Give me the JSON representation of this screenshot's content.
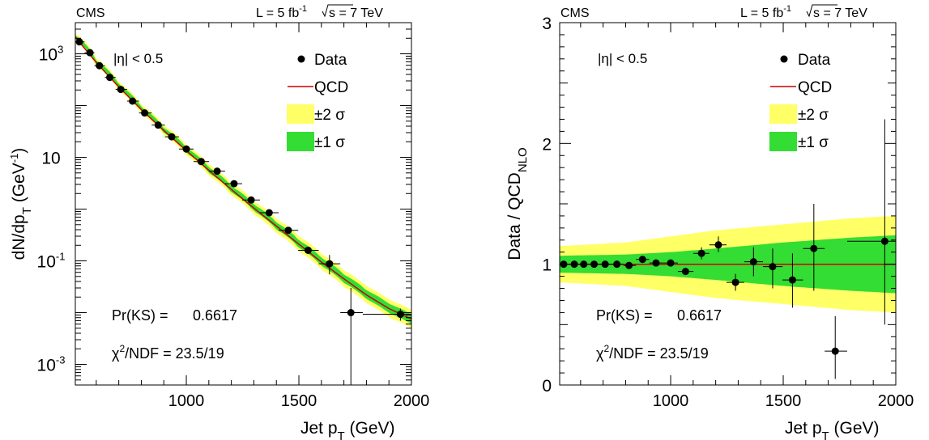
{
  "colors": {
    "band2": "#ffff66",
    "band1": "#33dd33",
    "qcd": "#cc0000",
    "data": "#000000"
  },
  "chart_data": [
    {
      "type": "scatter",
      "id": "spectrum",
      "experiment": "CMS",
      "lumi_text": "L = 5 fb",
      "lumi_sup": "-1",
      "energy_text": "s = 7 TeV",
      "eta_text": "|η| < 0.5",
      "xlabel_main": "Jet p",
      "xlabel_sub": "T",
      "xlabel_unit": " (GeV)",
      "ylabel_main": "dN/dp",
      "ylabel_sub": "T",
      "ylabel_unit": " (GeV",
      "ylabel_sup": "-1",
      "ylabel_end": ")",
      "xlim": [
        507,
        2000
      ],
      "ylim": [
        0.0004,
        4000
      ],
      "log_y": true,
      "x_ticks": [
        {
          "v": 1000,
          "label": "1000"
        },
        {
          "v": 1500,
          "label": "1500"
        },
        {
          "v": 2000,
          "label": "2000"
        }
      ],
      "y_ticks": [
        {
          "v": 0.001,
          "base": "10",
          "exp": "-3"
        },
        {
          "v": 0.1,
          "base": "10",
          "exp": "-1"
        },
        {
          "v": 10,
          "base": "10",
          "exp": ""
        },
        {
          "v": 1000,
          "base": "10",
          "exp": "3"
        }
      ],
      "legend": [
        {
          "kind": "marker",
          "label": "Data"
        },
        {
          "kind": "line",
          "label": "QCD"
        },
        {
          "kind": "band2",
          "label": "±2 σ"
        },
        {
          "kind": "band1",
          "label": "±1 σ"
        }
      ],
      "ks_label": "Pr(KS) =",
      "ks_value": "0.6617",
      "chi2_prefix": "χ",
      "chi2_sup": "2",
      "chi2_rest": "/NDF = 23.5/19",
      "points": [
        {
          "x": 525,
          "xlo": 507,
          "xhi": 548,
          "y": 1700
        },
        {
          "x": 572,
          "xlo": 548,
          "xhi": 592,
          "y": 1050
        },
        {
          "x": 614,
          "xlo": 592,
          "xhi": 638,
          "y": 590
        },
        {
          "x": 660,
          "xlo": 638,
          "xhi": 686,
          "y": 350
        },
        {
          "x": 709,
          "xlo": 686,
          "xhi": 737,
          "y": 205
        },
        {
          "x": 761,
          "xlo": 737,
          "xhi": 790,
          "y": 122
        },
        {
          "x": 815,
          "xlo": 790,
          "xhi": 846,
          "y": 72
        },
        {
          "x": 875,
          "xlo": 846,
          "xhi": 905,
          "y": 42
        },
        {
          "x": 935,
          "xlo": 905,
          "xhi": 967,
          "y": 25
        },
        {
          "x": 1000,
          "xlo": 967,
          "xhi": 1032,
          "y": 14.5
        },
        {
          "x": 1066,
          "xlo": 1032,
          "xhi": 1101,
          "y": 8.3
        },
        {
          "x": 1137,
          "xlo": 1101,
          "xhi": 1172,
          "y": 5.4
        },
        {
          "x": 1212,
          "xlo": 1172,
          "xhi": 1248,
          "y": 3.1
        },
        {
          "x": 1288,
          "xlo": 1248,
          "xhi": 1327,
          "y": 1.5
        },
        {
          "x": 1368,
          "xlo": 1327,
          "xhi": 1410,
          "y": 0.85
        },
        {
          "x": 1453,
          "xlo": 1410,
          "xhi": 1497,
          "y": 0.39
        },
        {
          "x": 1541,
          "xlo": 1497,
          "xhi": 1588,
          "y": 0.16
        },
        {
          "x": 1636,
          "xlo": 1588,
          "xhi": 1684,
          "y": 0.088,
          "ylo": 0.055,
          "yhi": 0.13
        },
        {
          "x": 1731,
          "xlo": 1684,
          "xhi": 1784,
          "y": 0.01,
          "ylo": 0.0004,
          "yhi": 0.03
        },
        {
          "x": 1951,
          "xlo": 1784,
          "xhi": 2000,
          "y": 0.0093,
          "ylo": 0.007,
          "yhi": 0.012
        }
      ],
      "qcd_curve": [
        [
          507,
          2100
        ],
        [
          600,
          680
        ],
        [
          700,
          230
        ],
        [
          800,
          84
        ],
        [
          900,
          33
        ],
        [
          1000,
          13.5
        ],
        [
          1100,
          5.6
        ],
        [
          1200,
          2.4
        ],
        [
          1300,
          1.05
        ],
        [
          1400,
          0.47
        ],
        [
          1500,
          0.21
        ],
        [
          1600,
          0.095
        ],
        [
          1700,
          0.045
        ],
        [
          1800,
          0.022
        ],
        [
          1900,
          0.012
        ],
        [
          2000,
          0.0075
        ]
      ],
      "band1_rel": [
        [
          507,
          0.09
        ],
        [
          1000,
          0.12
        ],
        [
          1500,
          0.18
        ],
        [
          2000,
          0.24
        ]
      ],
      "band2_rel": [
        [
          507,
          0.18
        ],
        [
          1000,
          0.25
        ],
        [
          1500,
          0.4
        ],
        [
          2000,
          0.5
        ]
      ]
    },
    {
      "type": "scatter",
      "id": "ratio",
      "experiment": "CMS",
      "lumi_text": "L = 5 fb",
      "lumi_sup": "-1",
      "energy_text": "s = 7 TeV",
      "eta_text": "|η| < 0.5",
      "xlabel_main": "Jet p",
      "xlabel_sub": "T",
      "xlabel_unit": " (GeV)",
      "ylabel_main": "Data / QCD",
      "ylabel_sub": "NLO",
      "xlim": [
        507,
        2000
      ],
      "ylim": [
        0,
        3
      ],
      "log_y": false,
      "x_ticks": [
        {
          "v": 1000,
          "label": "1000"
        },
        {
          "v": 1500,
          "label": "1500"
        },
        {
          "v": 2000,
          "label": "2000"
        }
      ],
      "y_ticks": [
        {
          "v": 0,
          "label": "0"
        },
        {
          "v": 1,
          "label": "1"
        },
        {
          "v": 2,
          "label": "2"
        },
        {
          "v": 3,
          "label": "3"
        }
      ],
      "legend": [
        {
          "kind": "marker",
          "label": "Data"
        },
        {
          "kind": "line",
          "label": "QCD"
        },
        {
          "kind": "band2",
          "label": "±2 σ"
        },
        {
          "kind": "band1",
          "label": "±1 σ"
        }
      ],
      "ks_label": "Pr(KS) =",
      "ks_value": "0.6617",
      "chi2_prefix": "χ",
      "chi2_sup": "2",
      "chi2_rest": "/NDF = 23.5/19",
      "points": [
        {
          "x": 525,
          "xlo": 507,
          "xhi": 548,
          "y": 1.0
        },
        {
          "x": 572,
          "xlo": 548,
          "xhi": 592,
          "y": 1.0
        },
        {
          "x": 614,
          "xlo": 592,
          "xhi": 638,
          "y": 1.0
        },
        {
          "x": 660,
          "xlo": 638,
          "xhi": 686,
          "y": 1.0
        },
        {
          "x": 709,
          "xlo": 686,
          "xhi": 737,
          "y": 1.0
        },
        {
          "x": 761,
          "xlo": 737,
          "xhi": 790,
          "y": 1.0
        },
        {
          "x": 815,
          "xlo": 790,
          "xhi": 846,
          "y": 0.99
        },
        {
          "x": 875,
          "xlo": 846,
          "xhi": 905,
          "y": 1.04
        },
        {
          "x": 935,
          "xlo": 905,
          "xhi": 967,
          "y": 1.01
        },
        {
          "x": 1000,
          "xlo": 967,
          "xhi": 1032,
          "y": 1.01
        },
        {
          "x": 1066,
          "xlo": 1032,
          "xhi": 1101,
          "y": 0.94,
          "ylo": 0.91,
          "yhi": 0.97
        },
        {
          "x": 1137,
          "xlo": 1101,
          "xhi": 1172,
          "y": 1.09,
          "ylo": 1.04,
          "yhi": 1.14
        },
        {
          "x": 1212,
          "xlo": 1172,
          "xhi": 1248,
          "y": 1.16,
          "ylo": 1.1,
          "yhi": 1.23
        },
        {
          "x": 1288,
          "xlo": 1248,
          "xhi": 1327,
          "y": 0.85,
          "ylo": 0.78,
          "yhi": 0.92
        },
        {
          "x": 1368,
          "xlo": 1327,
          "xhi": 1410,
          "y": 1.02,
          "ylo": 0.9,
          "yhi": 1.14
        },
        {
          "x": 1453,
          "xlo": 1410,
          "xhi": 1497,
          "y": 0.98,
          "ylo": 0.8,
          "yhi": 1.13
        },
        {
          "x": 1541,
          "xlo": 1497,
          "xhi": 1588,
          "y": 0.87,
          "ylo": 0.64,
          "yhi": 1.09
        },
        {
          "x": 1636,
          "xlo": 1588,
          "xhi": 1684,
          "y": 1.13,
          "ylo": 0.78,
          "yhi": 1.5
        },
        {
          "x": 1731,
          "xlo": 1684,
          "xhi": 1784,
          "y": 0.28,
          "ylo": 0.05,
          "yhi": 0.57
        },
        {
          "x": 1951,
          "xlo": 1784,
          "xhi": 2000,
          "y": 1.19,
          "ylo": 0.5,
          "yhi": 2.2
        }
      ],
      "qcd_curve": [
        [
          507,
          1.0
        ],
        [
          2000,
          1.0
        ]
      ],
      "band1_rel": [
        [
          507,
          0.07
        ],
        [
          800,
          0.08
        ],
        [
          1000,
          0.1
        ],
        [
          1200,
          0.13
        ],
        [
          1500,
          0.18
        ],
        [
          1800,
          0.22
        ],
        [
          2000,
          0.24
        ]
      ],
      "band2_rel": [
        [
          507,
          0.15
        ],
        [
          800,
          0.18
        ],
        [
          1000,
          0.23
        ],
        [
          1200,
          0.28
        ],
        [
          1500,
          0.33
        ],
        [
          1800,
          0.38
        ],
        [
          2000,
          0.4
        ]
      ]
    }
  ]
}
